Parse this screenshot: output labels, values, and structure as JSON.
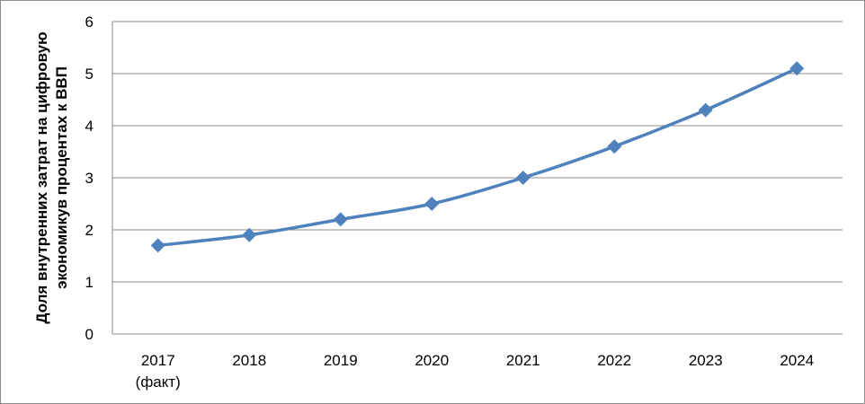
{
  "chart_data": {
    "type": "line",
    "y_label": [
      "Доля внутренних затрат на цифровую",
      "экономикув процентах к ВВП"
    ],
    "categories": [
      "2017 (факт)",
      "2018",
      "2019",
      "2020",
      "2021",
      "2022",
      "2023",
      "2024"
    ],
    "series": [
      {
        "color": "#4f81bd",
        "values": [
          1.7,
          1.9,
          2.2,
          2.5,
          3.0,
          3.6,
          4.3,
          5.1
        ]
      }
    ],
    "ylim": [
      0,
      6
    ],
    "yticks": [
      0,
      1,
      2,
      3,
      4,
      5,
      6
    ],
    "grid": true
  }
}
